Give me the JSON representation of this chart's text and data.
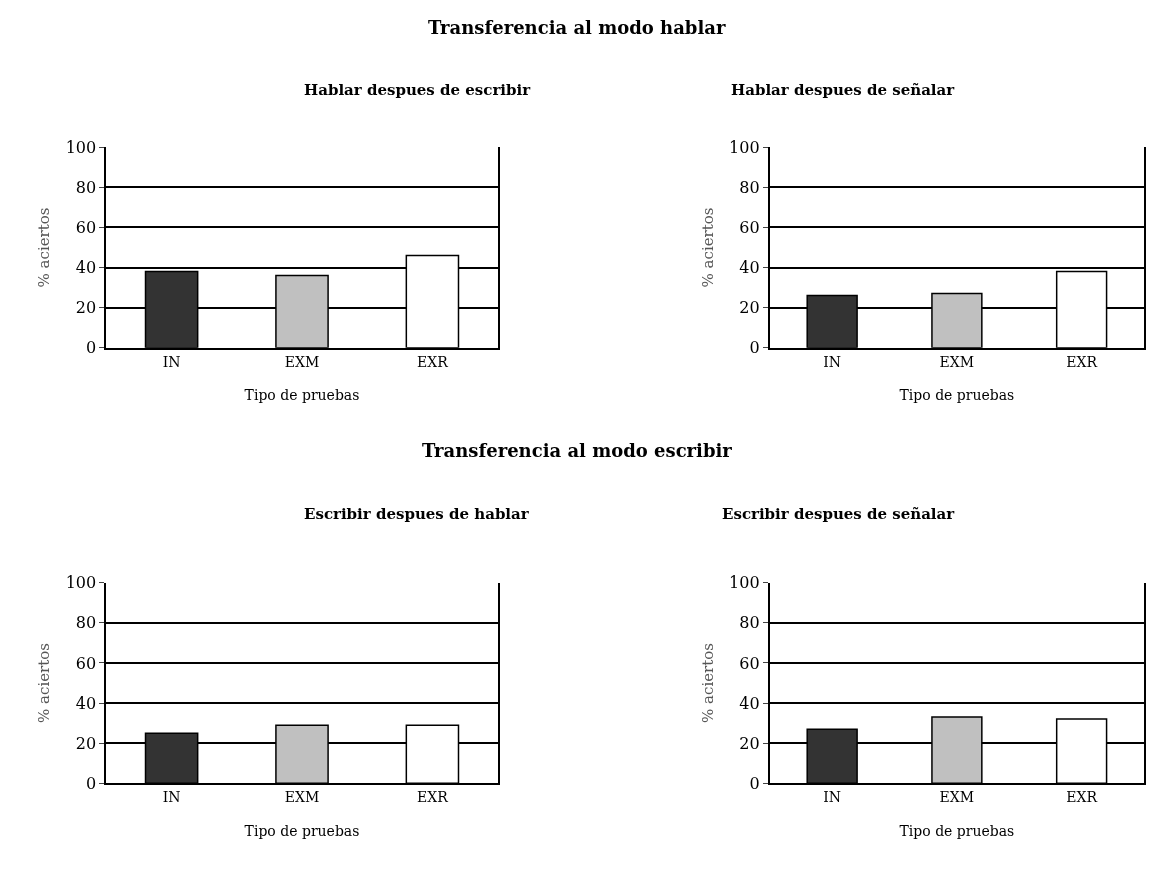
{
  "chart_data": [
    {
      "type": "bar",
      "title": "Hablar despues de escribir",
      "annotations": [
        "Transferencia al modo hablar"
      ],
      "xlabel": "Tipo de pruebas",
      "ylabel": "% aciertos",
      "categories": [
        "IN",
        "EXM",
        "EXR"
      ],
      "values": [
        38,
        36,
        46
      ],
      "colors": [
        "#333333",
        "#c0c0c0",
        "#ffffff"
      ],
      "ylim": [
        0,
        100
      ],
      "yticks": [
        0,
        20,
        40,
        60,
        80,
        100
      ],
      "grid": "y"
    },
    {
      "type": "bar",
      "title": "Hablar despues de señalar",
      "xlabel": "Tipo de pruebas",
      "ylabel": "% aciertos",
      "categories": [
        "IN",
        "EXM",
        "EXR"
      ],
      "values": [
        26,
        27,
        38
      ],
      "colors": [
        "#333333",
        "#c0c0c0",
        "#ffffff"
      ],
      "ylim": [
        0,
        100
      ],
      "yticks": [
        0,
        20,
        40,
        60,
        80,
        100
      ],
      "grid": "y"
    },
    {
      "type": "bar",
      "title": "Escribir despues de hablar",
      "annotations": [
        "Transferencia al modo escribir"
      ],
      "xlabel": "Tipo de pruebas",
      "ylabel": "% aciertos",
      "categories": [
        "IN",
        "EXM",
        "EXR"
      ],
      "values": [
        25,
        29,
        29
      ],
      "colors": [
        "#333333",
        "#c0c0c0",
        "#ffffff"
      ],
      "ylim": [
        0,
        100
      ],
      "yticks": [
        0,
        20,
        40,
        60,
        80,
        100
      ],
      "grid": "y"
    },
    {
      "type": "bar",
      "title": "Escribir despues de señalar",
      "xlabel": "Tipo de pruebas",
      "ylabel": "% aciertos",
      "categories": [
        "IN",
        "EXM",
        "EXR"
      ],
      "values": [
        27,
        33,
        32
      ],
      "colors": [
        "#333333",
        "#c0c0c0",
        "#ffffff"
      ],
      "ylim": [
        0,
        100
      ],
      "yticks": [
        0,
        20,
        40,
        60,
        80,
        100
      ],
      "grid": "y"
    }
  ]
}
